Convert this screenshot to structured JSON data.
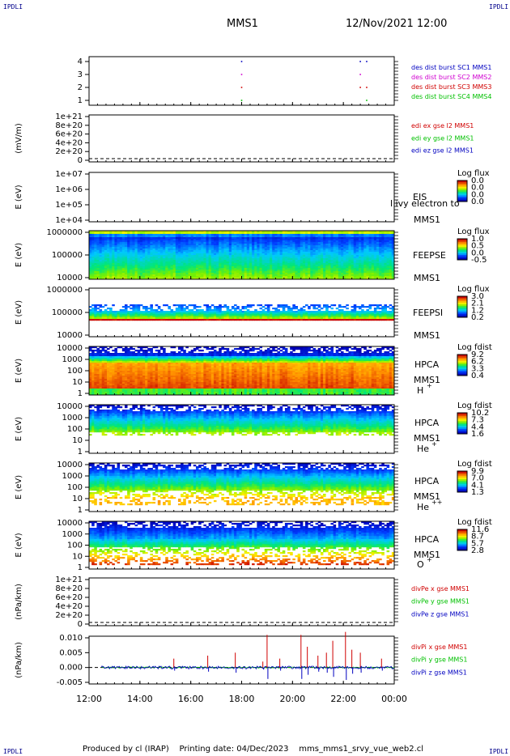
{
  "header": {
    "spacecraft": "MMS1",
    "datetime": "12/Nov/2021 12:00"
  },
  "corner_label": "IPDLI",
  "footer": {
    "produced_by": "Produced by cl (IRAP)",
    "printing_date": "Printing date: 04/Dec/2023",
    "filename": "mms_mms1_srvy_vue_web2.cl"
  },
  "chart_data": [
    {
      "type": "scatter",
      "panel": "burst",
      "ylim": [
        0.5,
        4.5
      ],
      "yticks": [
        "4",
        "3",
        "2",
        "1"
      ],
      "legend": [
        {
          "label": "des dist burst SC1 MMS1",
          "color": "#0000c0"
        },
        {
          "label": "des dist burst SC2 MMS2",
          "color": "#d000d0"
        },
        {
          "label": "des dist burst SC3 MMS3",
          "color": "#d00000"
        },
        {
          "label": "des dist burst SC4 MMS4",
          "color": "#00c000"
        }
      ],
      "points": [
        {
          "x": "18:00",
          "y": 4
        },
        {
          "x": "18:00",
          "y": 3
        },
        {
          "x": "18:00",
          "y": 2
        },
        {
          "x": "18:00",
          "y": 1
        },
        {
          "x": "22:40",
          "y": 4
        },
        {
          "x": "22:40",
          "y": 3
        },
        {
          "x": "22:40",
          "y": 2
        },
        {
          "x": "22:55",
          "y": 4
        },
        {
          "x": "22:55",
          "y": 2
        },
        {
          "x": "22:55",
          "y": 1
        }
      ]
    },
    {
      "type": "line",
      "panel": "edp",
      "ylabel": "(mV/m)",
      "yticks": [
        "1e+21",
        "8e+20",
        "6e+20",
        "4e+20",
        "2e+20",
        "0"
      ],
      "legend": [
        {
          "label": "edi ex gse l2 MMS1",
          "color": "#d00000"
        },
        {
          "label": "edi ey gse l2 MMS1",
          "color": "#00c000"
        },
        {
          "label": "edi ez gse l2 MMS1",
          "color": "#0000c0"
        }
      ]
    },
    {
      "type": "heatmap",
      "panel": "eis",
      "ylabel": "E (eV)",
      "yticks": [
        "1e+07",
        "1e+06",
        "1e+05",
        "1e+04"
      ],
      "label": "EIS",
      "sub": "MMS1",
      "overlay": "l ivy electron to",
      "colorbar": {
        "title": "Log flux",
        "ticks": [
          "0.0",
          "0.0",
          "0.0",
          "0.0"
        ]
      },
      "fill": "none"
    },
    {
      "type": "heatmap",
      "panel": "feepse",
      "ylabel": "E (eV)",
      "yticks": [
        "1000000",
        "100000",
        "10000"
      ],
      "label": "FEEPSE",
      "sub": "MMS1",
      "colorbar": {
        "title": "Log flux",
        "ticks": [
          "1.0",
          "0.5",
          "0.0",
          "-0.5"
        ]
      },
      "profile": "feeps_e"
    },
    {
      "type": "heatmap",
      "panel": "feepsi",
      "ylabel": "E (eV)",
      "yticks": [
        "1000000",
        "100000",
        "10000"
      ],
      "label": "FEEPSI",
      "sub": "MMS1",
      "colorbar": {
        "title": "Log flux",
        "ticks": [
          "3.0",
          "2.1",
          "1.2",
          "0.2"
        ]
      },
      "profile": "feeps_i"
    },
    {
      "type": "heatmap",
      "panel": "hpca_h",
      "ylabel": "E (eV)",
      "yticks": [
        "10000",
        "1000",
        "100",
        "10",
        "1"
      ],
      "label": "HPCA",
      "sub": "MMS1",
      "species": "H",
      "charge": "+",
      "colorbar": {
        "title": "Log fdist",
        "ticks": [
          "9.2",
          "6.2",
          "3.3",
          "0.4"
        ]
      },
      "profile": "hpca_h"
    },
    {
      "type": "heatmap",
      "panel": "hpca_he",
      "ylabel": "E (eV)",
      "yticks": [
        "10000",
        "1000",
        "100",
        "10",
        "1"
      ],
      "label": "HPCA",
      "sub": "MMS1",
      "species": "He",
      "charge": "+",
      "colorbar": {
        "title": "Log fdist",
        "ticks": [
          "10.2",
          "7.3",
          "4.4",
          "1.6"
        ]
      },
      "profile": "hpca_he"
    },
    {
      "type": "heatmap",
      "panel": "hpca_hepp",
      "ylabel": "E (eV)",
      "yticks": [
        "10000",
        "1000",
        "100",
        "10",
        "1"
      ],
      "label": "HPCA",
      "sub": "MMS1",
      "species": "He",
      "charge": "++",
      "colorbar": {
        "title": "Log fdist",
        "ticks": [
          "9.9",
          "7.0",
          "4.1",
          "1.3"
        ]
      },
      "profile": "hpca_hepp"
    },
    {
      "type": "heatmap",
      "panel": "hpca_o",
      "ylabel": "E (eV)",
      "yticks": [
        "10000",
        "1000",
        "100",
        "10",
        "1"
      ],
      "label": "HPCA",
      "sub": "MMS1",
      "species": "O",
      "charge": "+",
      "colorbar": {
        "title": "Log fdist",
        "ticks": [
          "11.6",
          "8.7",
          "5.7",
          "2.8"
        ]
      },
      "profile": "hpca_o"
    },
    {
      "type": "line",
      "panel": "divpe",
      "ylabel": "(nPa/km)",
      "yticks": [
        "1e+21",
        "8e+20",
        "6e+20",
        "4e+20",
        "2e+20",
        "0"
      ],
      "legend": [
        {
          "label": "divPe x gse MMS1",
          "color": "#d00000"
        },
        {
          "label": "divPe y gse MMS1",
          "color": "#00c000"
        },
        {
          "label": "divPe z gse MMS1",
          "color": "#0000c0"
        }
      ]
    },
    {
      "type": "line",
      "panel": "divpi",
      "ylabel": "(nPa/km)",
      "yticks": [
        "0.010",
        "0.005",
        "0.000",
        "-0.005"
      ],
      "ylim": [
        -0.008,
        0.012
      ],
      "legend": [
        {
          "label": "divPi x gse MMS1",
          "color": "#d00000"
        },
        {
          "label": "divPi y gse MMS1",
          "color": "#00c000"
        },
        {
          "label": "divPi z gse MMS1",
          "color": "#0000c0"
        }
      ],
      "spikes": [
        {
          "x": "15:20",
          "y": 0.003
        },
        {
          "x": "16:40",
          "y": 0.004
        },
        {
          "x": "17:45",
          "y": 0.005
        },
        {
          "x": "18:50",
          "y": 0.002
        },
        {
          "x": "19:00",
          "y": 0.011
        },
        {
          "x": "19:30",
          "y": 0.003
        },
        {
          "x": "20:20",
          "y": 0.011
        },
        {
          "x": "20:35",
          "y": 0.007
        },
        {
          "x": "21:00",
          "y": 0.004
        },
        {
          "x": "21:20",
          "y": 0.005
        },
        {
          "x": "21:35",
          "y": 0.009
        },
        {
          "x": "22:05",
          "y": 0.012
        },
        {
          "x": "22:20",
          "y": 0.006
        },
        {
          "x": "22:40",
          "y": 0.005
        },
        {
          "x": "23:30",
          "y": 0.003
        }
      ]
    }
  ],
  "xaxis": {
    "ticks": [
      "12:00",
      "14:00",
      "16:00",
      "18:00",
      "20:00",
      "22:00",
      "00:00"
    ]
  }
}
